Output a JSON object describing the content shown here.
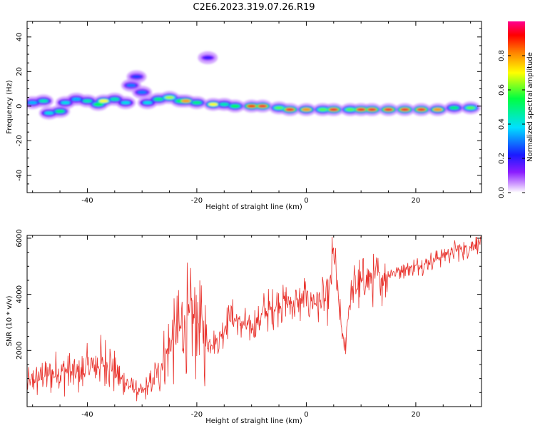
{
  "title": "C2E6.2023.319.07.26.R19",
  "chart_data": [
    {
      "type": "heatmap",
      "xlabel": "Height of straight line (km)",
      "ylabel": "Frequency (Hz)",
      "xlim": [
        -51,
        32
      ],
      "ylim": [
        -50,
        49
      ],
      "x_ticks": [
        -40,
        -20,
        0,
        20
      ],
      "y_ticks": [
        -40,
        -20,
        0,
        20,
        40
      ],
      "colorbar": {
        "label": "Normalized spectral amplitude",
        "range": [
          0,
          1
        ],
        "ticks": [
          0.0,
          0.2,
          0.4,
          0.6,
          0.8
        ]
      },
      "features": [
        {
          "x": -50,
          "y": 2,
          "amp": 0.35
        },
        {
          "x": -48,
          "y": 3,
          "amp": 0.45
        },
        {
          "x": -47,
          "y": -4,
          "amp": 0.4
        },
        {
          "x": -45,
          "y": -3,
          "amp": 0.5
        },
        {
          "x": -44,
          "y": 2,
          "amp": 0.4
        },
        {
          "x": -42,
          "y": 4,
          "amp": 0.35
        },
        {
          "x": -40,
          "y": 3,
          "amp": 0.45
        },
        {
          "x": -38,
          "y": 1,
          "amp": 0.55
        },
        {
          "x": -37,
          "y": 3,
          "amp": 0.7
        },
        {
          "x": -35,
          "y": 4,
          "amp": 0.45
        },
        {
          "x": -33,
          "y": 2,
          "amp": 0.4
        },
        {
          "x": -32,
          "y": 12,
          "amp": 0.3
        },
        {
          "x": -31,
          "y": 17,
          "amp": 0.25
        },
        {
          "x": -30,
          "y": 8,
          "amp": 0.3
        },
        {
          "x": -29,
          "y": 2,
          "amp": 0.4
        },
        {
          "x": -27,
          "y": 4,
          "amp": 0.5
        },
        {
          "x": -25,
          "y": 5,
          "amp": 0.65
        },
        {
          "x": -23,
          "y": 3,
          "amp": 0.55
        },
        {
          "x": -22,
          "y": 3,
          "amp": 0.8
        },
        {
          "x": -20,
          "y": 2,
          "amp": 0.5
        },
        {
          "x": -18,
          "y": 28,
          "amp": 0.2
        },
        {
          "x": -17,
          "y": 1,
          "amp": 0.7
        },
        {
          "x": -15,
          "y": 1,
          "amp": 0.45
        },
        {
          "x": -13,
          "y": 0,
          "amp": 0.55
        },
        {
          "x": -10,
          "y": 0,
          "amp": 0.9
        },
        {
          "x": -8,
          "y": 0,
          "amp": 0.95
        },
        {
          "x": -5,
          "y": -1,
          "amp": 0.6
        },
        {
          "x": -3,
          "y": -2,
          "amp": 0.95
        },
        {
          "x": 0,
          "y": -2,
          "amp": 0.8
        },
        {
          "x": 3,
          "y": -2,
          "amp": 0.6
        },
        {
          "x": 5,
          "y": -2,
          "amp": 0.95
        },
        {
          "x": 8,
          "y": -2,
          "amp": 0.6
        },
        {
          "x": 10,
          "y": -2,
          "amp": 0.95
        },
        {
          "x": 12,
          "y": -2,
          "amp": 0.95
        },
        {
          "x": 15,
          "y": -2,
          "amp": 0.95
        },
        {
          "x": 18,
          "y": -2,
          "amp": 0.95
        },
        {
          "x": 21,
          "y": -2,
          "amp": 0.95
        },
        {
          "x": 24,
          "y": -2,
          "amp": 0.8
        },
        {
          "x": 27,
          "y": -1,
          "amp": 0.5
        },
        {
          "x": 30,
          "y": -1,
          "amp": 0.6
        }
      ]
    },
    {
      "type": "line",
      "xlabel": "Height of straight line (km)",
      "ylabel": "SNR (10 * v/v)",
      "xlim": [
        -51,
        32
      ],
      "ylim": [
        0,
        6100
      ],
      "x_ticks": [
        -40,
        -20,
        0,
        20
      ],
      "y_ticks": [
        2000,
        4000,
        6000
      ],
      "color": "#e8302a",
      "series": [
        {
          "x": [
            -51,
            -48,
            -46,
            -44,
            -42,
            -40,
            -38,
            -36,
            -34,
            -32,
            -30,
            -28,
            -26,
            -24,
            -22,
            -20,
            -18,
            -16,
            -14,
            -12,
            -10,
            -8,
            -6,
            -4,
            -2,
            0,
            2,
            4,
            5,
            6,
            7,
            8,
            10,
            12,
            14,
            16,
            18,
            20,
            22,
            24,
            26,
            28,
            30,
            32
          ],
          "values": [
            800,
            1100,
            1200,
            1300,
            1100,
            1300,
            1500,
            1500,
            1000,
            700,
            500,
            900,
            1700,
            2500,
            3000,
            3200,
            2200,
            2400,
            3200,
            3000,
            2800,
            3300,
            3500,
            3800,
            3600,
            3900,
            3700,
            3800,
            5500,
            3500,
            2000,
            4000,
            4400,
            4600,
            4600,
            4800,
            4900,
            5000,
            5100,
            5300,
            5500,
            5600,
            5700,
            5900
          ]
        }
      ]
    }
  ]
}
